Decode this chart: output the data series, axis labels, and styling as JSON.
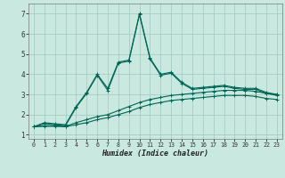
{
  "title": "",
  "xlabel": "Humidex (Indice chaleur)",
  "bg_color": "#c8e8e0",
  "grid_color": "#a0c8c0",
  "line_color": "#006655",
  "ylim": [
    0.8,
    7.5
  ],
  "xlim": [
    -0.5,
    23.5
  ],
  "yticks": [
    1,
    2,
    3,
    4,
    5,
    6,
    7
  ],
  "xticks": [
    0,
    1,
    2,
    3,
    4,
    5,
    6,
    7,
    8,
    9,
    10,
    11,
    12,
    13,
    14,
    15,
    16,
    17,
    18,
    19,
    20,
    21,
    22,
    23
  ],
  "line1_x": [
    0,
    1,
    2,
    3,
    4,
    5,
    6,
    7,
    8,
    9,
    10,
    11,
    12,
    13,
    14,
    15,
    16,
    17,
    18,
    19,
    20,
    21,
    22,
    23
  ],
  "line1_y": [
    1.4,
    1.6,
    1.55,
    1.5,
    2.4,
    3.1,
    4.0,
    3.3,
    4.6,
    4.7,
    7.0,
    4.8,
    4.0,
    4.1,
    3.6,
    3.3,
    3.35,
    3.4,
    3.45,
    3.35,
    3.3,
    3.3,
    3.1,
    3.0
  ],
  "line2_x": [
    0,
    1,
    2,
    3,
    4,
    5,
    6,
    7,
    8,
    9,
    10,
    11,
    12,
    13,
    14,
    15,
    16,
    17,
    18,
    19,
    20,
    21,
    22,
    23
  ],
  "line2_y": [
    1.4,
    1.55,
    1.5,
    1.45,
    2.35,
    3.05,
    3.95,
    3.2,
    4.55,
    4.65,
    6.95,
    4.75,
    3.95,
    4.05,
    3.55,
    3.25,
    3.3,
    3.35,
    3.4,
    3.3,
    3.25,
    3.25,
    3.05,
    2.95
  ],
  "line3_x": [
    0,
    1,
    2,
    3,
    4,
    5,
    6,
    7,
    8,
    9,
    10,
    11,
    12,
    13,
    14,
    15,
    16,
    17,
    18,
    19,
    20,
    21,
    22,
    23
  ],
  "line3_y": [
    1.4,
    1.45,
    1.45,
    1.42,
    1.6,
    1.75,
    1.9,
    2.0,
    2.2,
    2.4,
    2.6,
    2.75,
    2.85,
    2.95,
    3.0,
    3.05,
    3.1,
    3.15,
    3.2,
    3.2,
    3.2,
    3.15,
    3.05,
    3.0
  ],
  "line4_x": [
    0,
    1,
    2,
    3,
    4,
    5,
    6,
    7,
    8,
    9,
    10,
    11,
    12,
    13,
    14,
    15,
    16,
    17,
    18,
    19,
    20,
    21,
    22,
    23
  ],
  "line4_y": [
    1.4,
    1.42,
    1.42,
    1.4,
    1.5,
    1.6,
    1.75,
    1.85,
    2.0,
    2.15,
    2.35,
    2.5,
    2.6,
    2.7,
    2.75,
    2.8,
    2.85,
    2.9,
    2.95,
    2.95,
    2.95,
    2.9,
    2.8,
    2.75
  ]
}
